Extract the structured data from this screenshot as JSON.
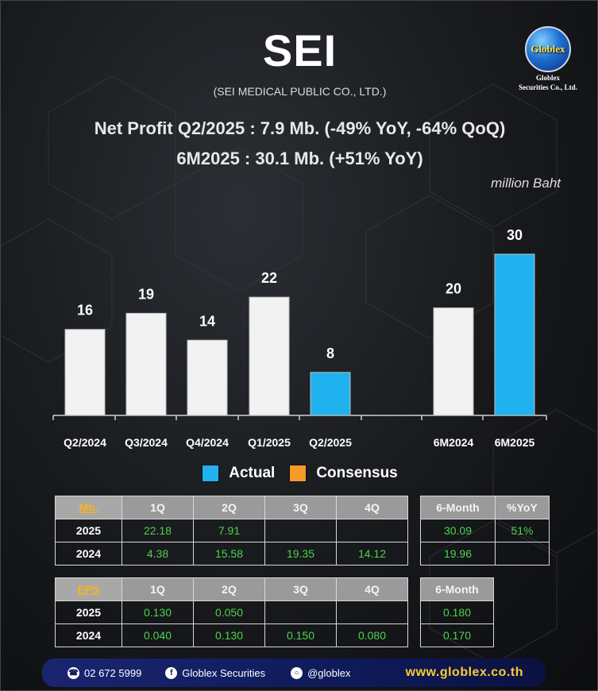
{
  "header": {
    "ticker": "SEI",
    "company": "(SEI MEDICAL PUBLIC CO., LTD.)",
    "headline_1": "Net Profit  Q2/2025 : 7.9 Mb. (-49% YoY, -64% QoQ)",
    "headline_2": "6M2025 : 30.1 Mb. (+51% YoY)",
    "unit": "million Baht"
  },
  "logo": {
    "word": "Globlex",
    "name_1": "Globlex",
    "name_2": "Securities Co., Ltd."
  },
  "colors": {
    "actual": "#1fb2ee",
    "consensus": "#f59c2b",
    "bar_gray": "#f2f2f2",
    "green_value": "#4cd44a",
    "header_gold": "#ffb21a"
  },
  "chart_data": {
    "type": "bar",
    "categories": [
      "Q2/2024",
      "Q3/2024",
      "Q4/2024",
      "Q1/2025",
      "Q2/2025",
      "6M2024",
      "6M2025"
    ],
    "values": [
      16,
      19,
      14,
      22,
      8,
      20,
      30
    ],
    "data_labels": [
      "16",
      "19",
      "14",
      "22",
      "8",
      "20",
      "30"
    ],
    "highlight": [
      false,
      false,
      false,
      false,
      true,
      false,
      true
    ],
    "ylim": [
      0,
      30
    ],
    "grid": false,
    "legend": [
      {
        "label": "Actual",
        "color": "#1fb2ee"
      },
      {
        "label": "Consensus",
        "color": "#f59c2b"
      }
    ]
  },
  "table_profit": {
    "corner": "Mb.",
    "columns": [
      "1Q",
      "2Q",
      "3Q",
      "4Q"
    ],
    "rows": [
      {
        "year": "2025",
        "values": [
          "22.18",
          "7.91",
          "",
          ""
        ]
      },
      {
        "year": "2024",
        "values": [
          "4.38",
          "15.58",
          "19.35",
          "14.12"
        ]
      }
    ]
  },
  "table_profit_6m": {
    "columns": [
      "6-Month",
      "%YoY"
    ],
    "rows": [
      [
        "30.09",
        "51%"
      ],
      [
        "19.96",
        ""
      ]
    ]
  },
  "table_eps": {
    "corner": "EPS",
    "columns": [
      "1Q",
      "2Q",
      "3Q",
      "4Q"
    ],
    "rows": [
      {
        "year": "2025",
        "values": [
          "0.130",
          "0.050",
          "",
          ""
        ]
      },
      {
        "year": "2024",
        "values": [
          "0.040",
          "0.130",
          "0.150",
          "0.080"
        ]
      }
    ]
  },
  "table_eps_6m": {
    "columns": [
      "6-Month"
    ],
    "rows": [
      [
        "0.180"
      ],
      [
        "0.170"
      ]
    ]
  },
  "footer": {
    "phone": "02 672 5999",
    "facebook": "Globlex Securities",
    "line": "@globlex",
    "website": "www.globlex.co.th"
  }
}
